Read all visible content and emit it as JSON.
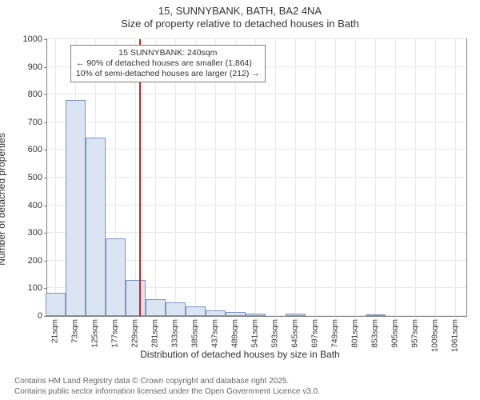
{
  "title": {
    "line1": "15, SUNNYBANK, BATH, BA2 4NA",
    "line2": "Size of property relative to detached houses in Bath"
  },
  "chart": {
    "type": "histogram",
    "ylabel": "Number of detached properties",
    "xlabel": "Distribution of detached houses by size in Bath",
    "background_color": "#ffffff",
    "grid_color": "#e8e8e8",
    "border_color": "#808080",
    "bar_fill": "#dbe4f3",
    "bar_border": "#7a94c0",
    "refline_color": "#d02020",
    "text_color": "#333333",
    "ylim": [
      0,
      1000
    ],
    "ytick_step": 100,
    "yticks": [
      0,
      100,
      200,
      300,
      400,
      500,
      600,
      700,
      800,
      900,
      1000
    ],
    "xdomain": [
      0,
      1090
    ],
    "xticks": [
      21,
      73,
      125,
      177,
      229,
      281,
      333,
      385,
      437,
      489,
      541,
      593,
      645,
      697,
      749,
      801,
      853,
      905,
      957,
      1009,
      1061
    ],
    "xtick_suffix": "sqm",
    "bar_width_data": 52,
    "series_x": [
      21,
      73,
      125,
      177,
      229,
      281,
      333,
      385,
      437,
      489,
      541,
      593,
      645,
      697,
      749,
      801,
      853,
      905,
      957,
      1009,
      1061
    ],
    "series_y": [
      85,
      780,
      645,
      280,
      130,
      60,
      50,
      35,
      20,
      15,
      10,
      0,
      8,
      0,
      0,
      0,
      4,
      0,
      0,
      0,
      0
    ],
    "reference_x": 240,
    "annotation": {
      "line1": "15 SUNNYBANK: 240sqm",
      "line2": "← 90% of detached houses are smaller (1,864)",
      "line3": "10% of semi-detached houses are larger (212) →",
      "box_border": "#808080",
      "box_bg": "#ffffff",
      "fontsize": 10.5
    }
  },
  "footer": {
    "line1": "Contains HM Land Registry data © Crown copyright and database right 2025.",
    "line2": "Contains public sector information licensed under the Open Government Licence v3.0.",
    "color": "#666666"
  }
}
